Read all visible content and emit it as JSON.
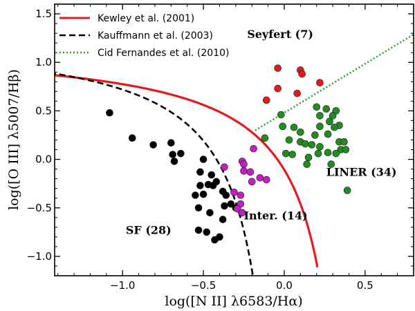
{
  "chart_data": {
    "type": "scatter",
    "xlabel": "log([N II] λ6583/Hα)",
    "ylabel": "log([O III] λ5007/Hβ)",
    "xlim": [
      -1.42,
      0.8
    ],
    "ylim": [
      -1.2,
      1.6
    ],
    "xticks": [
      -1.0,
      -0.5,
      0.0,
      0.5
    ],
    "xtick_labels": [
      "−1.0",
      "−0.5",
      "0.0",
      "0.5"
    ],
    "yticks": [
      -1.0,
      -0.5,
      0.0,
      0.5,
      1.0,
      1.5
    ],
    "ytick_labels": [
      "−1.0",
      "−0.5",
      "0.0",
      "0.5",
      "1.0",
      "1.5"
    ],
    "legend_position": "top-left",
    "curves": [
      {
        "name": "Kewley et al. (2001)",
        "color": "#e41a1c",
        "style": "solid",
        "formula": "0.61/(x-0.47)+1.19"
      },
      {
        "name": "Kauffmann et al. (2003)",
        "color": "#000000",
        "style": "dashed",
        "formula": "0.61/(x-0.05)+1.3"
      },
      {
        "name": "Cid Fernandes et al. (2010)",
        "color": "#2ca02c",
        "style": "dotted",
        "formula": "1.01*x+0.48"
      }
    ],
    "series": [
      {
        "name": "SF",
        "label": "SF (28)",
        "color": "#000000",
        "points": [
          [
            -1.08,
            0.48
          ],
          [
            -0.94,
            0.22
          ],
          [
            -0.81,
            0.15
          ],
          [
            -0.7,
            0.17
          ],
          [
            -0.69,
            0.05
          ],
          [
            -0.64,
            0.06
          ],
          [
            -0.68,
            -0.02
          ],
          [
            -0.5,
            0.0
          ],
          [
            -0.52,
            -0.13
          ],
          [
            -0.52,
            -0.27
          ],
          [
            -0.47,
            -0.26
          ],
          [
            -0.45,
            -0.16
          ],
          [
            -0.42,
            -0.23
          ],
          [
            -0.55,
            -0.37
          ],
          [
            -0.5,
            -0.36
          ],
          [
            -0.44,
            -0.27
          ],
          [
            -0.38,
            -0.33
          ],
          [
            -0.36,
            -0.37
          ],
          [
            -0.53,
            -0.5
          ],
          [
            -0.46,
            -0.55
          ],
          [
            -0.37,
            -0.48
          ],
          [
            -0.33,
            -0.46
          ],
          [
            -0.3,
            -0.5
          ],
          [
            -0.38,
            -0.62
          ],
          [
            -0.53,
            -0.73
          ],
          [
            -0.48,
            -0.75
          ],
          [
            -0.43,
            -0.83
          ],
          [
            -0.4,
            -0.8
          ]
        ]
      },
      {
        "name": "Intermediate",
        "label": "Inter. (14)",
        "color": "#c020c0",
        "points": [
          [
            -0.37,
            -0.08
          ],
          [
            -0.26,
            -0.02
          ],
          [
            -0.25,
            -0.05
          ],
          [
            -0.19,
            0.11
          ],
          [
            -0.25,
            -0.12
          ],
          [
            -0.21,
            -0.13
          ],
          [
            -0.2,
            -0.23
          ],
          [
            -0.15,
            -0.19
          ],
          [
            -0.11,
            -0.21
          ],
          [
            -0.31,
            -0.34
          ],
          [
            -0.27,
            -0.37
          ],
          [
            -0.27,
            -0.46
          ],
          [
            -0.29,
            -0.51
          ],
          [
            -0.26,
            -0.55
          ]
        ]
      },
      {
        "name": "Seyfert",
        "label": "Seyfert (7)",
        "color": "#e41a1c",
        "points": [
          [
            -0.04,
            0.94
          ],
          [
            0.1,
            0.92
          ],
          [
            0.11,
            0.88
          ],
          [
            0.22,
            0.79
          ],
          [
            -0.04,
            0.73
          ],
          [
            0.08,
            0.68
          ],
          [
            -0.11,
            0.61
          ]
        ]
      },
      {
        "name": "LINER",
        "label": "LINER (34)",
        "color": "#228b22",
        "points": [
          [
            0.2,
            0.54
          ],
          [
            0.26,
            0.52
          ],
          [
            0.32,
            0.5
          ],
          [
            -0.02,
            0.46
          ],
          [
            0.22,
            0.45
          ],
          [
            0.3,
            0.45
          ],
          [
            0.28,
            0.39
          ],
          [
            0.34,
            0.35
          ],
          [
            -0.01,
            0.34
          ],
          [
            0.06,
            0.33
          ],
          [
            0.22,
            0.34
          ],
          [
            0.31,
            0.33
          ],
          [
            0.1,
            0.28
          ],
          [
            0.19,
            0.25
          ],
          [
            0.27,
            0.26
          ],
          [
            -0.12,
            0.22
          ],
          [
            0.03,
            0.2
          ],
          [
            0.1,
            0.18
          ],
          [
            0.13,
            0.16
          ],
          [
            0.17,
            0.15
          ],
          [
            0.22,
            0.13
          ],
          [
            0.34,
            0.18
          ],
          [
            0.35,
            0.1
          ],
          [
            0.01,
            0.06
          ],
          [
            0.05,
            0.05
          ],
          [
            0.21,
            0.06
          ],
          [
            0.27,
            0.07
          ],
          [
            0.32,
            0.06
          ],
          [
            0.37,
            0.18
          ],
          [
            0.38,
            0.1
          ],
          [
            0.15,
            0.02
          ],
          [
            0.14,
            -0.05
          ],
          [
            0.29,
            -0.05
          ],
          [
            0.39,
            -0.32
          ]
        ]
      }
    ],
    "region_labels": [
      {
        "text": "Seyfert (7)",
        "x": -0.23,
        "y": 1.25
      },
      {
        "text": "LINER (34)",
        "x": 0.26,
        "y": -0.17
      },
      {
        "text": "Inter. (14)",
        "x": -0.25,
        "y": -0.62
      },
      {
        "text": "SF (28)",
        "x": -0.98,
        "y": -0.77
      }
    ]
  }
}
